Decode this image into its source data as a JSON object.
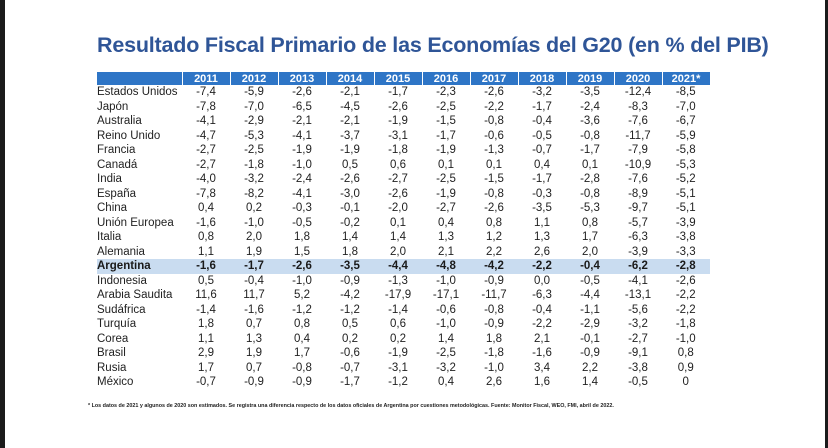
{
  "title": "Resultado Fiscal Primario de las Economías del G20 (en % del PIB)",
  "table": {
    "header": [
      "",
      "2011",
      "2012",
      "2013",
      "2014",
      "2015",
      "2016",
      "2017",
      "2018",
      "2019",
      "2020",
      "2021*"
    ],
    "rows": [
      {
        "country": "Estados Unidos",
        "values": [
          "-7,4",
          "-5,9",
          "-2,6",
          "-2,1",
          "-1,7",
          "-2,3",
          "-2,6",
          "-3,2",
          "-3,5",
          "-12,4",
          "-8,5"
        ]
      },
      {
        "country": "Japón",
        "values": [
          "-7,8",
          "-7,0",
          "-6,5",
          "-4,5",
          "-2,6",
          "-2,5",
          "-2,2",
          "-1,7",
          "-2,4",
          "-8,3",
          "-7,0"
        ]
      },
      {
        "country": "Australia",
        "values": [
          "-4,1",
          "-2,9",
          "-2,1",
          "-2,1",
          "-1,9",
          "-1,5",
          "-0,8",
          "-0,4",
          "-3,6",
          "-7,6",
          "-6,7"
        ]
      },
      {
        "country": "Reino Unido",
        "values": [
          "-4,7",
          "-5,3",
          "-4,1",
          "-3,7",
          "-3,1",
          "-1,7",
          "-0,6",
          "-0,5",
          "-0,8",
          "-11,7",
          "-5,9"
        ]
      },
      {
        "country": "Francia",
        "values": [
          "-2,7",
          "-2,5",
          "-1,9",
          "-1,9",
          "-1,8",
          "-1,9",
          "-1,3",
          "-0,7",
          "-1,7",
          "-7,9",
          "-5,8"
        ]
      },
      {
        "country": "Canadá",
        "values": [
          "-2,7",
          "-1,8",
          "-1,0",
          "0,5",
          "0,6",
          "0,1",
          "0,1",
          "0,4",
          "0,1",
          "-10,9",
          "-5,3"
        ]
      },
      {
        "country": "India",
        "values": [
          "-4,0",
          "-3,2",
          "-2,4",
          "-2,6",
          "-2,7",
          "-2,5",
          "-1,5",
          "-1,7",
          "-2,8",
          "-7,6",
          "-5,2"
        ]
      },
      {
        "country": "España",
        "values": [
          "-7,8",
          "-8,2",
          "-4,1",
          "-3,0",
          "-2,6",
          "-1,9",
          "-0,8",
          "-0,3",
          "-0,8",
          "-8,9",
          "-5,1"
        ]
      },
      {
        "country": "China",
        "values": [
          "0,4",
          "0,2",
          "-0,3",
          "-0,1",
          "-2,0",
          "-2,7",
          "-2,6",
          "-3,5",
          "-5,3",
          "-9,7",
          "-5,1"
        ]
      },
      {
        "country": "Unión Europea",
        "values": [
          "-1,6",
          "-1,0",
          "-0,5",
          "-0,2",
          "0,1",
          "0,4",
          "0,8",
          "1,1",
          "0,8",
          "-5,7",
          "-3,9"
        ]
      },
      {
        "country": "Italia",
        "values": [
          "0,8",
          "2,0",
          "1,8",
          "1,4",
          "1,4",
          "1,3",
          "1,2",
          "1,3",
          "1,7",
          "-6,3",
          "-3,8"
        ]
      },
      {
        "country": "Alemania",
        "values": [
          "1,1",
          "1,9",
          "1,5",
          "1,8",
          "2,0",
          "2,1",
          "2,2",
          "2,6",
          "2,0",
          "-3,9",
          "-3,3"
        ]
      },
      {
        "country": "Argentina",
        "highlight": true,
        "values": [
          "-1,6",
          "-1,7",
          "-2,6",
          "-3,5",
          "-4,4",
          "-4,8",
          "-4,2",
          "-2,2",
          "-0,4",
          "-6,2",
          "-2,8"
        ]
      },
      {
        "country": "Indonesia",
        "values": [
          "0,5",
          "-0,4",
          "-1,0",
          "-0,9",
          "-1,3",
          "-1,0",
          "-0,9",
          "0,0",
          "-0,5",
          "-4,1",
          "-2,6"
        ]
      },
      {
        "country": "Arabia Saudita",
        "values": [
          "11,6",
          "11,7",
          "5,2",
          "-4,2",
          "-17,9",
          "-17,1",
          "-11,7",
          "-6,3",
          "-4,4",
          "-13,1",
          "-2,2"
        ]
      },
      {
        "country": "Sudáfrica",
        "values": [
          "-1,4",
          "-1,6",
          "-1,2",
          "-1,2",
          "-1,4",
          "-0,6",
          "-0,8",
          "-0,4",
          "-1,1",
          "-5,6",
          "-2,2"
        ]
      },
      {
        "country": "Turquía",
        "values": [
          "1,8",
          "0,7",
          "0,8",
          "0,5",
          "0,6",
          "-1,0",
          "-0,9",
          "-2,2",
          "-2,9",
          "-3,2",
          "-1,8"
        ]
      },
      {
        "country": "Corea",
        "values": [
          "1,1",
          "1,3",
          "0,4",
          "0,2",
          "0,2",
          "1,4",
          "1,8",
          "2,1",
          "-0,1",
          "-2,7",
          "-1,0"
        ]
      },
      {
        "country": "Brasil",
        "values": [
          "2,9",
          "1,9",
          "1,7",
          "-0,6",
          "-1,9",
          "-2,5",
          "-1,8",
          "-1,6",
          "-0,9",
          "-9,1",
          "0,8"
        ]
      },
      {
        "country": "Rusia",
        "values": [
          "1,7",
          "0,7",
          "-0,8",
          "-0,7",
          "-3,1",
          "-3,2",
          "-1,0",
          "3,4",
          "2,2",
          "-3,8",
          "0,9"
        ]
      },
      {
        "country": "México",
        "values": [
          "-0,7",
          "-0,9",
          "-0,9",
          "-1,7",
          "-1,2",
          "0,4",
          "2,6",
          "1,6",
          "1,4",
          "-0,5",
          "0"
        ]
      }
    ]
  },
  "footnote": "* Los datos de 2021 y algunos de 2020 son estimados. Se registra una diferencia respecto de los datos oficiales de Argentina por cuestiones metodológicas. Fuente: Monitor Fiscal, WEO, FMI, abril de 2022.",
  "colors": {
    "title": "#2f5597",
    "header_bg": "#2e75c6",
    "highlight_row": "#c9dcf0"
  }
}
